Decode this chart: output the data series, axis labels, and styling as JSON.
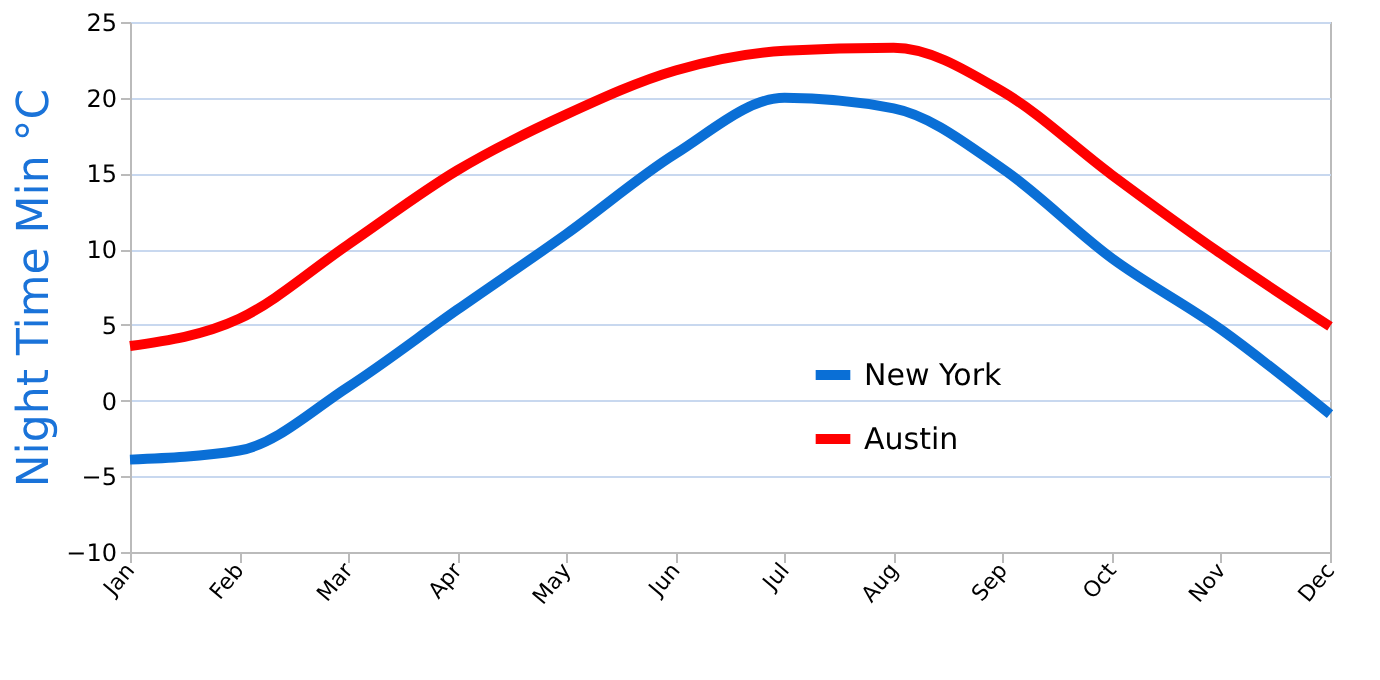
{
  "chart_data": {
    "type": "line",
    "ylabel": "Night Time Min °C",
    "categories": [
      "Jan",
      "Feb",
      "Mar",
      "Apr",
      "May",
      "Jun",
      "Jul",
      "Aug",
      "Sep",
      "Oct",
      "Nov",
      "Dec"
    ],
    "series": [
      {
        "name": "New York",
        "color": "#0a6fd6",
        "values": [
          -3.9,
          -3.3,
          0.9,
          6,
          11,
          16.3,
          20,
          19.3,
          15.3,
          9.4,
          4.7,
          -0.9
        ]
      },
      {
        "name": "Austin",
        "color": "#ff0000",
        "values": [
          3.6,
          5.4,
          10.3,
          15.2,
          18.9,
          21.8,
          23.1,
          23.3,
          20.4,
          14.9,
          9.7,
          4.9
        ]
      }
    ],
    "ylim": [
      -10,
      25
    ],
    "yticks": [
      -10,
      -5,
      0,
      5,
      10,
      15,
      20,
      25
    ],
    "grid": "y",
    "legend": "right",
    "marker": "none",
    "line_style": "solid"
  }
}
